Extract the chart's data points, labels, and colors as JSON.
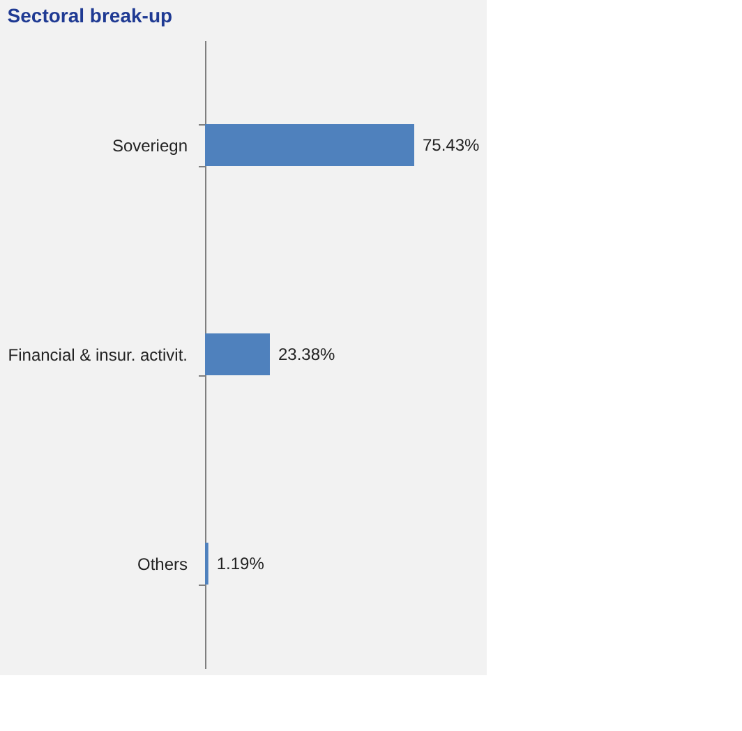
{
  "chart_data": {
    "type": "bar",
    "orientation": "horizontal",
    "title": "Sectoral break-up",
    "categories": [
      "Soveriegn",
      "Financial & insur. activit.",
      "Others"
    ],
    "values": [
      75.43,
      23.38,
      1.19
    ],
    "value_labels": [
      "75.43%",
      "23.38%",
      "1.19%"
    ],
    "color": "#4f81bd",
    "grid": false
  }
}
